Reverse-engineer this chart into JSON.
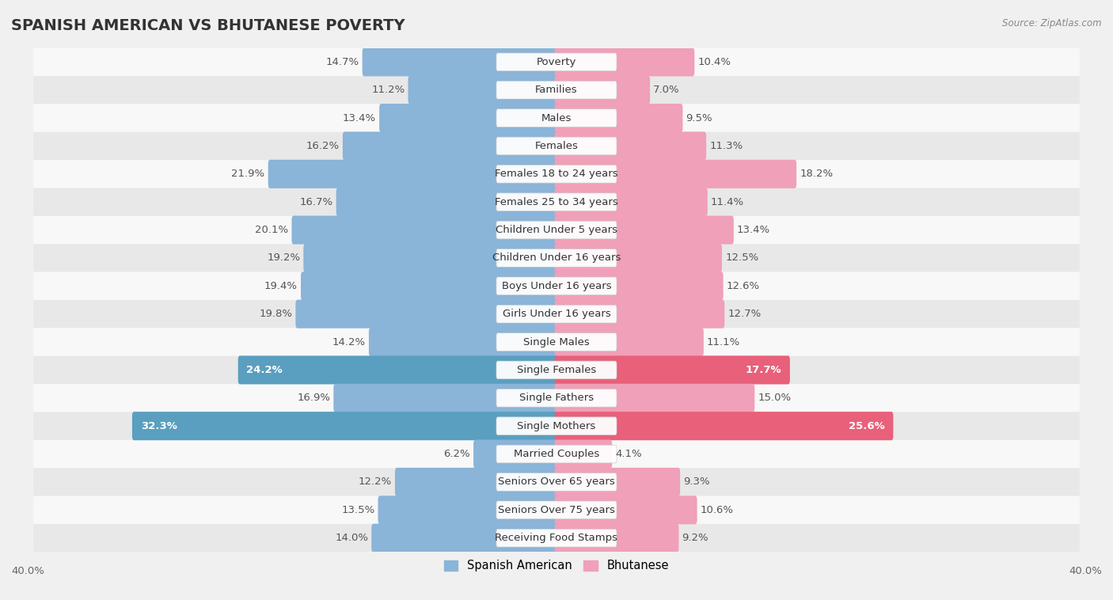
{
  "title": "SPANISH AMERICAN VS BHUTANESE POVERTY",
  "source": "Source: ZipAtlas.com",
  "categories": [
    "Poverty",
    "Families",
    "Males",
    "Females",
    "Females 18 to 24 years",
    "Females 25 to 34 years",
    "Children Under 5 years",
    "Children Under 16 years",
    "Boys Under 16 years",
    "Girls Under 16 years",
    "Single Males",
    "Single Females",
    "Single Fathers",
    "Single Mothers",
    "Married Couples",
    "Seniors Over 65 years",
    "Seniors Over 75 years",
    "Receiving Food Stamps"
  ],
  "spanish_american": [
    14.7,
    11.2,
    13.4,
    16.2,
    21.9,
    16.7,
    20.1,
    19.2,
    19.4,
    19.8,
    14.2,
    24.2,
    16.9,
    32.3,
    6.2,
    12.2,
    13.5,
    14.0
  ],
  "bhutanese": [
    10.4,
    7.0,
    9.5,
    11.3,
    18.2,
    11.4,
    13.4,
    12.5,
    12.6,
    12.7,
    11.1,
    17.7,
    15.0,
    25.6,
    4.1,
    9.3,
    10.6,
    9.2
  ],
  "spanish_color": "#8ab4d8",
  "bhutanese_color": "#f0a0b8",
  "spanish_highlight_color": "#5a9fc0",
  "bhutanese_highlight_color": "#e8607a",
  "highlight_rows": [
    11,
    13
  ],
  "axis_max": 40.0,
  "bar_height": 0.72,
  "background_color": "#f0f0f0",
  "row_colors": [
    "#f8f8f8",
    "#e8e8e8"
  ],
  "legend_labels": [
    "Spanish American",
    "Bhutanese"
  ],
  "label_color": "#555555",
  "label_fontsize": 9.5,
  "cat_fontsize": 9.5,
  "title_fontsize": 14
}
